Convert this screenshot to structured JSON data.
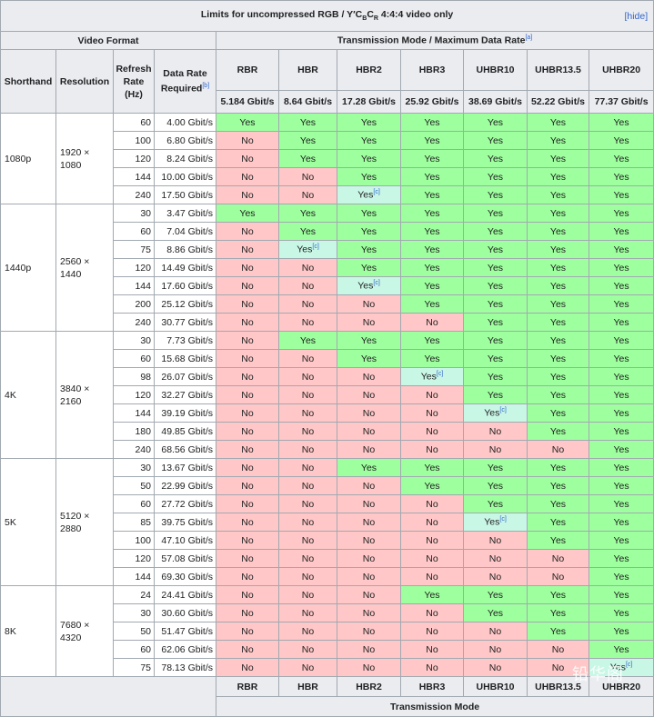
{
  "title": {
    "prefix": "Limits for uncompressed RGB / Y′C",
    "sub_b": "B",
    "mid": "C",
    "sub_r": "R",
    "suffix": " 4:4:4 video only",
    "hide": "[hide]"
  },
  "headers": {
    "video_format": "Video Format",
    "transmission_mode": "Transmission Mode / Maximum Data Rate",
    "tm_footnote": "[a]",
    "shorthand": "Shorthand",
    "resolution": "Resolution",
    "refresh_rate": "Refresh Rate (Hz)",
    "data_rate": "Data Rate Required",
    "dr_footnote": "[b]"
  },
  "modes": [
    {
      "name": "RBR",
      "rate": "5.184 Gbit/s"
    },
    {
      "name": "HBR",
      "rate": "8.64 Gbit/s"
    },
    {
      "name": "HBR2",
      "rate": "17.28 Gbit/s"
    },
    {
      "name": "HBR3",
      "rate": "25.92 Gbit/s"
    },
    {
      "name": "UHBR10",
      "rate": "38.69 Gbit/s"
    },
    {
      "name": "UHBR13.5",
      "rate": "52.22 Gbit/s"
    },
    {
      "name": "UHBR20",
      "rate": "77.37 Gbit/s"
    }
  ],
  "footer": {
    "modes": [
      "RBR",
      "HBR",
      "HBR2",
      "HBR3",
      "UHBR10",
      "UHBR13.5",
      "UHBR20"
    ],
    "label": "Transmission Mode"
  },
  "partial_footnote": "[c]",
  "watermark": "铅华阁",
  "groups": [
    {
      "shorthand": "1080p",
      "resolution": "1920 × 1080",
      "rows": [
        {
          "hz": "60",
          "rate": "4.00 Gbit/s",
          "cells": [
            "Y",
            "Y",
            "Y",
            "Y",
            "Y",
            "Y",
            "Y"
          ]
        },
        {
          "hz": "100",
          "rate": "6.80 Gbit/s",
          "cells": [
            "N",
            "Y",
            "Y",
            "Y",
            "Y",
            "Y",
            "Y"
          ]
        },
        {
          "hz": "120",
          "rate": "8.24 Gbit/s",
          "cells": [
            "N",
            "Y",
            "Y",
            "Y",
            "Y",
            "Y",
            "Y"
          ]
        },
        {
          "hz": "144",
          "rate": "10.00 Gbit/s",
          "cells": [
            "N",
            "N",
            "Y",
            "Y",
            "Y",
            "Y",
            "Y"
          ]
        },
        {
          "hz": "240",
          "rate": "17.50 Gbit/s",
          "cells": [
            "N",
            "N",
            "P",
            "Y",
            "Y",
            "Y",
            "Y"
          ]
        }
      ]
    },
    {
      "shorthand": "1440p",
      "resolution": "2560 × 1440",
      "rows": [
        {
          "hz": "30",
          "rate": "3.47 Gbit/s",
          "cells": [
            "Y",
            "Y",
            "Y",
            "Y",
            "Y",
            "Y",
            "Y"
          ]
        },
        {
          "hz": "60",
          "rate": "7.04 Gbit/s",
          "cells": [
            "N",
            "Y",
            "Y",
            "Y",
            "Y",
            "Y",
            "Y"
          ]
        },
        {
          "hz": "75",
          "rate": "8.86 Gbit/s",
          "cells": [
            "N",
            "P",
            "Y",
            "Y",
            "Y",
            "Y",
            "Y"
          ]
        },
        {
          "hz": "120",
          "rate": "14.49 Gbit/s",
          "cells": [
            "N",
            "N",
            "Y",
            "Y",
            "Y",
            "Y",
            "Y"
          ]
        },
        {
          "hz": "144",
          "rate": "17.60 Gbit/s",
          "cells": [
            "N",
            "N",
            "P",
            "Y",
            "Y",
            "Y",
            "Y"
          ]
        },
        {
          "hz": "200",
          "rate": "25.12 Gbit/s",
          "cells": [
            "N",
            "N",
            "N",
            "Y",
            "Y",
            "Y",
            "Y"
          ]
        },
        {
          "hz": "240",
          "rate": "30.77 Gbit/s",
          "cells": [
            "N",
            "N",
            "N",
            "N",
            "Y",
            "Y",
            "Y"
          ]
        }
      ]
    },
    {
      "shorthand": "4K",
      "resolution": "3840 × 2160",
      "rows": [
        {
          "hz": "30",
          "rate": "7.73 Gbit/s",
          "cells": [
            "N",
            "Y",
            "Y",
            "Y",
            "Y",
            "Y",
            "Y"
          ]
        },
        {
          "hz": "60",
          "rate": "15.68 Gbit/s",
          "cells": [
            "N",
            "N",
            "Y",
            "Y",
            "Y",
            "Y",
            "Y"
          ]
        },
        {
          "hz": "98",
          "rate": "26.07 Gbit/s",
          "cells": [
            "N",
            "N",
            "N",
            "P",
            "Y",
            "Y",
            "Y"
          ]
        },
        {
          "hz": "120",
          "rate": "32.27 Gbit/s",
          "cells": [
            "N",
            "N",
            "N",
            "N",
            "Y",
            "Y",
            "Y"
          ]
        },
        {
          "hz": "144",
          "rate": "39.19 Gbit/s",
          "cells": [
            "N",
            "N",
            "N",
            "N",
            "P",
            "Y",
            "Y"
          ]
        },
        {
          "hz": "180",
          "rate": "49.85 Gbit/s",
          "cells": [
            "N",
            "N",
            "N",
            "N",
            "N",
            "Y",
            "Y"
          ]
        },
        {
          "hz": "240",
          "rate": "68.56 Gbit/s",
          "cells": [
            "N",
            "N",
            "N",
            "N",
            "N",
            "N",
            "Y"
          ]
        }
      ]
    },
    {
      "shorthand": "5K",
      "resolution": "5120 × 2880",
      "rows": [
        {
          "hz": "30",
          "rate": "13.67 Gbit/s",
          "cells": [
            "N",
            "N",
            "Y",
            "Y",
            "Y",
            "Y",
            "Y"
          ]
        },
        {
          "hz": "50",
          "rate": "22.99 Gbit/s",
          "cells": [
            "N",
            "N",
            "N",
            "Y",
            "Y",
            "Y",
            "Y"
          ]
        },
        {
          "hz": "60",
          "rate": "27.72 Gbit/s",
          "cells": [
            "N",
            "N",
            "N",
            "N",
            "Y",
            "Y",
            "Y"
          ]
        },
        {
          "hz": "85",
          "rate": "39.75 Gbit/s",
          "cells": [
            "N",
            "N",
            "N",
            "N",
            "P",
            "Y",
            "Y"
          ]
        },
        {
          "hz": "100",
          "rate": "47.10 Gbit/s",
          "cells": [
            "N",
            "N",
            "N",
            "N",
            "N",
            "Y",
            "Y"
          ]
        },
        {
          "hz": "120",
          "rate": "57.08 Gbit/s",
          "cells": [
            "N",
            "N",
            "N",
            "N",
            "N",
            "N",
            "Y"
          ]
        },
        {
          "hz": "144",
          "rate": "69.30 Gbit/s",
          "cells": [
            "N",
            "N",
            "N",
            "N",
            "N",
            "N",
            "Y"
          ]
        }
      ]
    },
    {
      "shorthand": "8K",
      "resolution": "7680 × 4320",
      "rows": [
        {
          "hz": "24",
          "rate": "24.41 Gbit/s",
          "cells": [
            "N",
            "N",
            "N",
            "Y",
            "Y",
            "Y",
            "Y"
          ]
        },
        {
          "hz": "30",
          "rate": "30.60 Gbit/s",
          "cells": [
            "N",
            "N",
            "N",
            "N",
            "Y",
            "Y",
            "Y"
          ]
        },
        {
          "hz": "50",
          "rate": "51.47 Gbit/s",
          "cells": [
            "N",
            "N",
            "N",
            "N",
            "N",
            "Y",
            "Y"
          ]
        },
        {
          "hz": "60",
          "rate": "62.06 Gbit/s",
          "cells": [
            "N",
            "N",
            "N",
            "N",
            "N",
            "N",
            "Y"
          ]
        },
        {
          "hz": "75",
          "rate": "78.13 Gbit/s",
          "cells": [
            "N",
            "N",
            "N",
            "N",
            "N",
            "N",
            "P"
          ]
        }
      ]
    }
  ]
}
